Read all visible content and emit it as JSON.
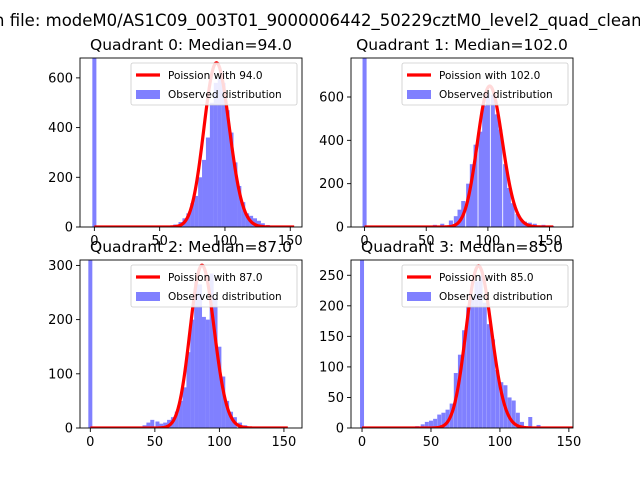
{
  "figure": {
    "suptitle": "n file: modeM0/AS1C09_003T01_9000006442_50229cztM0_level2_quad_clean"
  },
  "colors": {
    "hist": "#8080ff",
    "poisson": "#ff0000",
    "axis": "#000000",
    "legend_border": "#cccccc"
  },
  "chart_data": [
    {
      "type": "bar",
      "title": "Quadrant 0: Median=94.0",
      "xlabel": "",
      "ylabel": "",
      "xlim": [
        -11,
        159
      ],
      "ylim": [
        0,
        680
      ],
      "xticks": [
        0,
        50,
        100,
        150
      ],
      "yticks": [
        0,
        200,
        400,
        600
      ],
      "bin_width": 3.1,
      "legend": {
        "placement": "top-right",
        "line_label": "Poission with 94.0",
        "bar_label": "Observed distribution"
      },
      "poisson": {
        "lambda": 94.0,
        "peak": 660
      },
      "bars": [
        {
          "x": 0,
          "y": 680
        },
        {
          "x": 52,
          "y": 3
        },
        {
          "x": 58,
          "y": 5
        },
        {
          "x": 62,
          "y": 10
        },
        {
          "x": 66,
          "y": 20
        },
        {
          "x": 69,
          "y": 35
        },
        {
          "x": 72,
          "y": 55
        },
        {
          "x": 75,
          "y": 95
        },
        {
          "x": 78,
          "y": 125
        },
        {
          "x": 81,
          "y": 200
        },
        {
          "x": 84,
          "y": 270
        },
        {
          "x": 87,
          "y": 360
        },
        {
          "x": 90,
          "y": 500
        },
        {
          "x": 93,
          "y": 580
        },
        {
          "x": 96,
          "y": 600
        },
        {
          "x": 99,
          "y": 580
        },
        {
          "x": 102,
          "y": 470
        },
        {
          "x": 105,
          "y": 380
        },
        {
          "x": 108,
          "y": 260
        },
        {
          "x": 111,
          "y": 165
        },
        {
          "x": 114,
          "y": 100
        },
        {
          "x": 117,
          "y": 55
        },
        {
          "x": 120,
          "y": 45
        },
        {
          "x": 123,
          "y": 35
        },
        {
          "x": 126,
          "y": 25
        },
        {
          "x": 129,
          "y": 15
        },
        {
          "x": 133,
          "y": 8
        },
        {
          "x": 138,
          "y": 4
        }
      ]
    },
    {
      "type": "bar",
      "title": "Quadrant 1: Median=102.0",
      "xlabel": "",
      "ylabel": "",
      "xlim": [
        -11,
        169
      ],
      "ylim": [
        0,
        780
      ],
      "xticks": [
        0,
        50,
        100,
        150
      ],
      "yticks": [
        0,
        200,
        400,
        600
      ],
      "bin_width": 3.3,
      "legend": {
        "placement": "top-right",
        "line_label": "Poission with 102.0",
        "bar_label": "Observed distribution"
      },
      "poisson": {
        "lambda": 102.0,
        "peak": 650
      },
      "bars": [
        {
          "x": 0,
          "y": 780
        },
        {
          "x": 57,
          "y": 10
        },
        {
          "x": 63,
          "y": 15
        },
        {
          "x": 70,
          "y": 30
        },
        {
          "x": 74,
          "y": 50
        },
        {
          "x": 77,
          "y": 80
        },
        {
          "x": 80,
          "y": 120
        },
        {
          "x": 84,
          "y": 200
        },
        {
          "x": 87,
          "y": 290
        },
        {
          "x": 90,
          "y": 380
        },
        {
          "x": 94,
          "y": 440
        },
        {
          "x": 97,
          "y": 560
        },
        {
          "x": 100,
          "y": 620
        },
        {
          "x": 104,
          "y": 610
        },
        {
          "x": 107,
          "y": 520
        },
        {
          "x": 110,
          "y": 450
        },
        {
          "x": 114,
          "y": 290
        },
        {
          "x": 117,
          "y": 180
        },
        {
          "x": 120,
          "y": 110
        },
        {
          "x": 124,
          "y": 60
        },
        {
          "x": 127,
          "y": 35
        },
        {
          "x": 130,
          "y": 25
        },
        {
          "x": 134,
          "y": 20
        },
        {
          "x": 138,
          "y": 15
        },
        {
          "x": 145,
          "y": 10
        },
        {
          "x": 152,
          "y": 5
        }
      ]
    },
    {
      "type": "bar",
      "title": "Quadrant 2: Median=87.0",
      "xlabel": "",
      "ylabel": "",
      "xlim": [
        -8,
        164
      ],
      "ylim": [
        0,
        310
      ],
      "xticks": [
        0,
        50,
        100,
        150
      ],
      "yticks": [
        0,
        100,
        200,
        300
      ],
      "bin_width": 3.1,
      "legend": {
        "placement": "top-right",
        "line_label": "Poission with 87.0",
        "bar_label": "Observed distribution"
      },
      "poisson": {
        "lambda": 87.0,
        "peak": 300
      },
      "bars": [
        {
          "x": 0,
          "y": 310
        },
        {
          "x": 35,
          "y": 2
        },
        {
          "x": 42,
          "y": 5
        },
        {
          "x": 45,
          "y": 10
        },
        {
          "x": 48,
          "y": 15
        },
        {
          "x": 52,
          "y": 12
        },
        {
          "x": 55,
          "y": 8
        },
        {
          "x": 58,
          "y": 10
        },
        {
          "x": 61,
          "y": 15
        },
        {
          "x": 64,
          "y": 20
        },
        {
          "x": 67,
          "y": 30
        },
        {
          "x": 70,
          "y": 50
        },
        {
          "x": 73,
          "y": 75
        },
        {
          "x": 76,
          "y": 140
        },
        {
          "x": 79,
          "y": 200
        },
        {
          "x": 82,
          "y": 270
        },
        {
          "x": 85,
          "y": 265
        },
        {
          "x": 88,
          "y": 205
        },
        {
          "x": 91,
          "y": 200
        },
        {
          "x": 94,
          "y": 285
        },
        {
          "x": 97,
          "y": 240
        },
        {
          "x": 100,
          "y": 150
        },
        {
          "x": 103,
          "y": 95
        },
        {
          "x": 106,
          "y": 50
        },
        {
          "x": 109,
          "y": 30
        },
        {
          "x": 112,
          "y": 20
        },
        {
          "x": 116,
          "y": 10
        },
        {
          "x": 120,
          "y": 5
        }
      ]
    },
    {
      "type": "bar",
      "title": "Quadrant 3: Median=85.0",
      "xlabel": "",
      "ylabel": "",
      "xlim": [
        -8,
        153
      ],
      "ylim": [
        0,
        275
      ],
      "xticks": [
        0,
        50,
        100,
        150
      ],
      "yticks": [
        0,
        50,
        100,
        150,
        200,
        250
      ],
      "bin_width": 2.9,
      "legend": {
        "placement": "top-right",
        "line_label": "Poission with 85.0",
        "bar_label": "Observed distribution"
      },
      "poisson": {
        "lambda": 85.0,
        "peak": 265
      },
      "bars": [
        {
          "x": 0,
          "y": 275
        },
        {
          "x": 40,
          "y": 3
        },
        {
          "x": 44,
          "y": 6
        },
        {
          "x": 47,
          "y": 10
        },
        {
          "x": 50,
          "y": 12
        },
        {
          "x": 53,
          "y": 15
        },
        {
          "x": 56,
          "y": 22
        },
        {
          "x": 59,
          "y": 25
        },
        {
          "x": 62,
          "y": 30
        },
        {
          "x": 65,
          "y": 40
        },
        {
          "x": 68,
          "y": 90
        },
        {
          "x": 71,
          "y": 120
        },
        {
          "x": 74,
          "y": 160
        },
        {
          "x": 77,
          "y": 200
        },
        {
          "x": 80,
          "y": 215
        },
        {
          "x": 83,
          "y": 240
        },
        {
          "x": 86,
          "y": 250
        },
        {
          "x": 89,
          "y": 205
        },
        {
          "x": 92,
          "y": 170
        },
        {
          "x": 95,
          "y": 145
        },
        {
          "x": 98,
          "y": 95
        },
        {
          "x": 101,
          "y": 75
        },
        {
          "x": 104,
          "y": 70
        },
        {
          "x": 107,
          "y": 50
        },
        {
          "x": 110,
          "y": 45
        },
        {
          "x": 113,
          "y": 25
        },
        {
          "x": 116,
          "y": 10
        },
        {
          "x": 122,
          "y": 18
        },
        {
          "x": 128,
          "y": 5
        }
      ]
    }
  ]
}
